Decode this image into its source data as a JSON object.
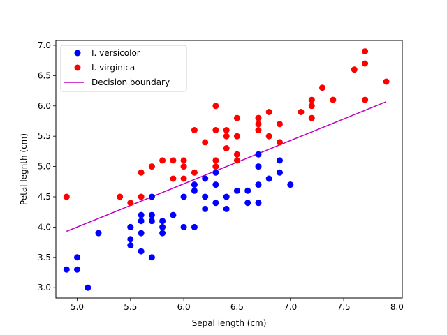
{
  "chart_data": {
    "type": "scatter",
    "title": "",
    "xlabel": "Sepal length (cm)",
    "ylabel": "Petal legnth (cm)",
    "xlim": [
      4.8,
      8.05
    ],
    "ylim": [
      2.83,
      7.08
    ],
    "xticks": [
      "5.0",
      "5.5",
      "6.0",
      "6.5",
      "7.0",
      "7.5",
      "8.0"
    ],
    "yticks": [
      "3.0",
      "3.5",
      "4.0",
      "4.5",
      "5.0",
      "5.5",
      "6.0",
      "6.5",
      "7.0"
    ],
    "grid": false,
    "legend_position": "upper-left",
    "series": [
      {
        "name": "I. versicolor",
        "kind": "scatter",
        "color": "#0000ff",
        "points": [
          [
            4.9,
            3.3
          ],
          [
            5.0,
            3.3
          ],
          [
            5.0,
            3.5
          ],
          [
            5.1,
            3.0
          ],
          [
            5.2,
            3.9
          ],
          [
            5.5,
            3.7
          ],
          [
            5.5,
            3.8
          ],
          [
            5.5,
            4.0
          ],
          [
            5.5,
            4.0
          ],
          [
            5.6,
            3.6
          ],
          [
            5.6,
            3.9
          ],
          [
            5.6,
            4.1
          ],
          [
            5.6,
            4.2
          ],
          [
            5.7,
            3.5
          ],
          [
            5.7,
            4.1
          ],
          [
            5.7,
            4.2
          ],
          [
            5.7,
            4.5
          ],
          [
            5.8,
            3.9
          ],
          [
            5.8,
            4.0
          ],
          [
            5.8,
            4.1
          ],
          [
            5.9,
            4.2
          ],
          [
            6.0,
            4.0
          ],
          [
            6.0,
            4.5
          ],
          [
            6.1,
            4.0
          ],
          [
            6.1,
            4.6
          ],
          [
            6.1,
            4.7
          ],
          [
            6.2,
            4.3
          ],
          [
            6.2,
            4.5
          ],
          [
            6.2,
            4.8
          ],
          [
            6.3,
            4.4
          ],
          [
            6.3,
            4.7
          ],
          [
            6.3,
            4.9
          ],
          [
            6.4,
            4.3
          ],
          [
            6.4,
            4.5
          ],
          [
            6.5,
            4.6
          ],
          [
            6.6,
            4.4
          ],
          [
            6.6,
            4.6
          ],
          [
            6.7,
            4.4
          ],
          [
            6.7,
            4.7
          ],
          [
            6.7,
            5.0
          ],
          [
            6.7,
            5.2
          ],
          [
            6.8,
            4.8
          ],
          [
            6.9,
            4.9
          ],
          [
            6.9,
            5.1
          ],
          [
            7.0,
            4.7
          ]
        ]
      },
      {
        "name": "I. virginica",
        "kind": "scatter",
        "color": "#ff0000",
        "points": [
          [
            4.9,
            4.5
          ],
          [
            5.4,
            4.5
          ],
          [
            5.5,
            4.4
          ],
          [
            5.6,
            4.5
          ],
          [
            5.6,
            4.9
          ],
          [
            5.7,
            5.0
          ],
          [
            5.8,
            5.1
          ],
          [
            5.9,
            4.8
          ],
          [
            5.9,
            5.1
          ],
          [
            6.0,
            4.8
          ],
          [
            6.0,
            5.0
          ],
          [
            6.0,
            5.1
          ],
          [
            6.1,
            4.9
          ],
          [
            6.1,
            5.6
          ],
          [
            6.2,
            5.4
          ],
          [
            6.3,
            5.0
          ],
          [
            6.3,
            5.1
          ],
          [
            6.3,
            5.6
          ],
          [
            6.3,
            6.0
          ],
          [
            6.4,
            5.3
          ],
          [
            6.4,
            5.5
          ],
          [
            6.4,
            5.6
          ],
          [
            6.5,
            5.1
          ],
          [
            6.5,
            5.2
          ],
          [
            6.5,
            5.5
          ],
          [
            6.5,
            5.8
          ],
          [
            6.7,
            5.6
          ],
          [
            6.7,
            5.7
          ],
          [
            6.7,
            5.8
          ],
          [
            6.8,
            5.5
          ],
          [
            6.8,
            5.9
          ],
          [
            6.9,
            5.4
          ],
          [
            6.9,
            5.7
          ],
          [
            7.1,
            5.9
          ],
          [
            7.2,
            5.8
          ],
          [
            7.2,
            6.0
          ],
          [
            7.2,
            6.1
          ],
          [
            7.3,
            6.3
          ],
          [
            7.4,
            6.1
          ],
          [
            7.6,
            6.6
          ],
          [
            7.7,
            6.1
          ],
          [
            7.7,
            6.7
          ],
          [
            7.7,
            6.9
          ],
          [
            7.9,
            6.4
          ]
        ]
      },
      {
        "name": "Decision boundary",
        "kind": "line",
        "color": "#bf00bf",
        "x": [
          4.9,
          7.9
        ],
        "y": [
          3.93,
          6.07
        ]
      }
    ]
  }
}
